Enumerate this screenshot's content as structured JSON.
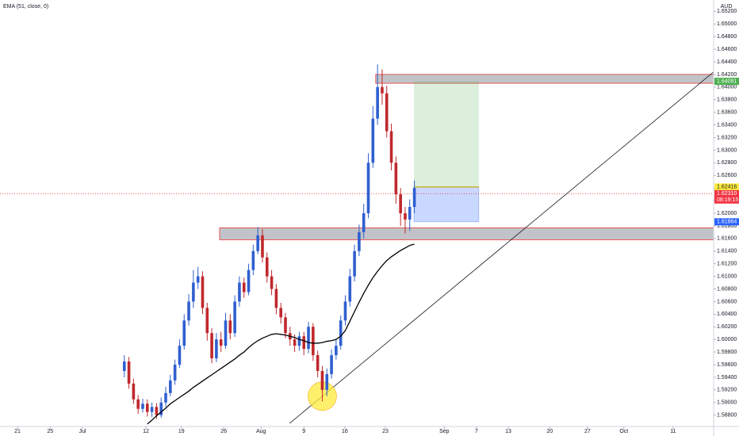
{
  "chart_data": {
    "type": "candlestick",
    "legend": "EMA (51, close, 0)",
    "currency": "AUD",
    "candles": {
      "up_color": "#2f5fd0",
      "down_color": "#c0282d",
      "open": [
        1.595,
        1.5965,
        1.593,
        1.5905,
        1.589,
        1.5898,
        1.5885,
        1.5893,
        1.588,
        1.59,
        1.5915,
        1.5935,
        1.596,
        1.599,
        1.603,
        1.606,
        1.609,
        1.61,
        1.605,
        1.601,
        1.597,
        1.6,
        1.599,
        1.603,
        1.601,
        1.606,
        1.609,
        1.6075,
        1.611,
        1.614,
        1.6165,
        1.613,
        1.61,
        1.608,
        1.605,
        1.6035,
        1.601,
        1.6,
        1.599,
        1.6005,
        1.5985,
        1.602,
        1.5975,
        1.595,
        1.592,
        1.5945,
        1.5975,
        1.599,
        1.603,
        1.606,
        1.61,
        1.614,
        1.617,
        1.62,
        1.628,
        1.635,
        1.64,
        1.639,
        1.633,
        1.628,
        1.623,
        1.62,
        1.619,
        1.621
      ],
      "high": [
        1.5975,
        1.5972,
        1.5938,
        1.5912,
        1.5906,
        1.5905,
        1.59,
        1.5899,
        1.5908,
        1.5925,
        1.5944,
        1.5968,
        1.6,
        1.604,
        1.6072,
        1.611,
        1.6115,
        1.6108,
        1.6058,
        1.6018,
        1.601,
        1.6012,
        1.6042,
        1.604,
        1.607,
        1.61,
        1.6098,
        1.612,
        1.615,
        1.6178,
        1.6175,
        1.6138,
        1.611,
        1.6088,
        1.6058,
        1.6042,
        1.602,
        1.6008,
        1.6012,
        1.6012,
        1.6028,
        1.6026,
        1.5982,
        1.5958,
        1.5954,
        1.5984,
        1.6,
        1.6038,
        1.607,
        1.6112,
        1.615,
        1.6182,
        1.6215,
        1.6295,
        1.637,
        1.6436,
        1.6428,
        1.6402,
        1.6342,
        1.629,
        1.624,
        1.621,
        1.6222,
        1.6252
      ],
      "low": [
        1.594,
        1.5922,
        1.5898,
        1.5882,
        1.5884,
        1.5878,
        1.5877,
        1.5874,
        1.5876,
        1.5893,
        1.591,
        1.5928,
        1.5955,
        1.5984,
        1.6022,
        1.605,
        1.608,
        1.604,
        1.5998,
        1.5962,
        1.5964,
        1.598,
        1.5985,
        1.6,
        1.6004,
        1.6052,
        1.6066,
        1.607,
        1.6102,
        1.6135,
        1.6122,
        1.609,
        1.607,
        1.604,
        1.6025,
        1.6002,
        1.599,
        1.598,
        1.5982,
        1.5975,
        1.5978,
        1.5966,
        1.594,
        1.5902,
        1.591,
        1.5938,
        1.5968,
        1.5984,
        1.6022,
        1.6052,
        1.6092,
        1.6132,
        1.616,
        1.6192,
        1.6272,
        1.634,
        1.6372,
        1.632,
        1.6268,
        1.6215,
        1.618,
        1.6168,
        1.6172,
        1.62
      ],
      "close": [
        1.5965,
        1.593,
        1.5905,
        1.589,
        1.5898,
        1.5885,
        1.5893,
        1.588,
        1.59,
        1.5915,
        1.5935,
        1.596,
        1.599,
        1.603,
        1.606,
        1.609,
        1.61,
        1.605,
        1.601,
        1.597,
        1.6,
        1.599,
        1.603,
        1.601,
        1.606,
        1.609,
        1.6075,
        1.611,
        1.614,
        1.6165,
        1.613,
        1.61,
        1.608,
        1.605,
        1.6035,
        1.601,
        1.6,
        1.599,
        1.6005,
        1.5985,
        1.602,
        1.5975,
        1.595,
        1.592,
        1.5945,
        1.5975,
        1.599,
        1.603,
        1.606,
        1.61,
        1.614,
        1.617,
        1.62,
        1.628,
        1.635,
        1.64,
        1.639,
        1.633,
        1.628,
        1.623,
        1.62,
        1.619,
        1.621,
        1.624
      ]
    },
    "ema": {
      "name": "EMA (51, close, 0)",
      "color": "#000000",
      "values": [
        null,
        null,
        null,
        null,
        null,
        1.5866,
        1.5872,
        1.5879,
        1.5885,
        1.5891,
        1.5898,
        1.5903,
        1.5908,
        1.5913,
        1.5918,
        1.5924,
        1.5929,
        1.5934,
        1.5939,
        1.5944,
        1.5949,
        1.5954,
        1.5959,
        1.5964,
        1.5969,
        1.5975,
        1.598,
        1.5987,
        1.5993,
        1.5998,
        1.6002,
        1.6005,
        1.6008,
        1.6009,
        1.6008,
        1.6007,
        1.6005,
        1.6003,
        1.6,
        1.5998,
        1.5995,
        1.5994,
        1.5994,
        1.5995,
        1.5997,
        1.5998,
        1.6,
        1.6005,
        1.6014,
        1.6029,
        1.6044,
        1.6059,
        1.6073,
        1.6086,
        1.6098,
        1.6108,
        1.6117,
        1.6125,
        1.6131,
        1.6136,
        1.6141,
        1.6145,
        1.6149,
        1.6151
      ]
    },
    "xlim": [
      -27,
      128
    ],
    "xticks": [
      {
        "value": -23.2,
        "label": "21"
      },
      {
        "value": -16.1,
        "label": "25"
      },
      {
        "value": -9.1,
        "label": "Jul"
      },
      {
        "value": 4.7,
        "label": "12"
      },
      {
        "value": 12.4,
        "label": "19"
      },
      {
        "value": 21.6,
        "label": "26"
      },
      {
        "value": 29.7,
        "label": "Aug"
      },
      {
        "value": 39.0,
        "label": "9"
      },
      {
        "value": 47.9,
        "label": "16"
      },
      {
        "value": 56.7,
        "label": "23"
      },
      {
        "value": 69.5,
        "label": "Sep"
      },
      {
        "value": 76.5,
        "label": "7"
      },
      {
        "value": 83.4,
        "label": "13"
      },
      {
        "value": 92.4,
        "label": "20"
      },
      {
        "value": 100.6,
        "label": "27"
      },
      {
        "value": 108.5,
        "label": "Oct"
      },
      {
        "value": 119.2,
        "label": "11"
      }
    ],
    "ylim": [
      1.5862,
      1.6538
    ],
    "yticks": [
      {
        "value": 1.588,
        "label": "1.58800"
      },
      {
        "value": 1.59,
        "label": "1.59000"
      },
      {
        "value": 1.592,
        "label": "1.59200"
      },
      {
        "value": 1.594,
        "label": "1.59400"
      },
      {
        "value": 1.596,
        "label": "1.59600"
      },
      {
        "value": 1.598,
        "label": "1.59800"
      },
      {
        "value": 1.6,
        "label": "1.60000"
      },
      {
        "value": 1.602,
        "label": "1.60200"
      },
      {
        "value": 1.604,
        "label": "1.60400"
      },
      {
        "value": 1.606,
        "label": "1.60600"
      },
      {
        "value": 1.608,
        "label": "1.60800"
      },
      {
        "value": 1.61,
        "label": "1.61000"
      },
      {
        "value": 1.612,
        "label": "1.61200"
      },
      {
        "value": 1.614,
        "label": "1.61400"
      },
      {
        "value": 1.616,
        "label": "1.61600"
      },
      {
        "value": 1.618,
        "label": "1.61800"
      },
      {
        "value": 1.62,
        "label": "1.62000"
      },
      {
        "value": 1.622,
        "label": "1.62200"
      },
      {
        "value": 1.624,
        "label": "1.62400"
      },
      {
        "value": 1.626,
        "label": "1.62600"
      },
      {
        "value": 1.628,
        "label": "1.62800"
      },
      {
        "value": 1.63,
        "label": "1.63000"
      },
      {
        "value": 1.632,
        "label": "1.63200"
      },
      {
        "value": 1.634,
        "label": "1.63400"
      },
      {
        "value": 1.636,
        "label": "1.63600"
      },
      {
        "value": 1.638,
        "label": "1.63800"
      },
      {
        "value": 1.64,
        "label": "1.64000"
      },
      {
        "value": 1.642,
        "label": "1.64200"
      },
      {
        "value": 1.644,
        "label": "1.64400"
      },
      {
        "value": 1.646,
        "label": "1.64600"
      },
      {
        "value": 1.648,
        "label": "1.64800"
      },
      {
        "value": 1.65,
        "label": "1.65000"
      },
      {
        "value": 1.652,
        "label": "1.65200"
      }
    ],
    "zones": [
      {
        "x0": 54.6,
        "x1": 128,
        "top": 1.642,
        "bottom": 1.6406
      },
      {
        "x0": 20.7,
        "x1": 128,
        "top": 1.6177,
        "bottom": 1.6158
      }
    ],
    "position": {
      "x0": 62.9,
      "x1": 77.0,
      "target": 1.64091,
      "entry": 1.62416,
      "stop": 1.61864
    },
    "trendline": {
      "x": [
        35.9,
        128
      ],
      "y": [
        1.5867,
        1.6424
      ]
    },
    "highlight": {
      "x": 43,
      "y": 1.591
    },
    "price_labels": [
      {
        "value": 1.64091,
        "color": "#4caf50"
      },
      {
        "value": 1.62416,
        "color": "#ffeb3b"
      },
      {
        "value": 1.6231,
        "label": "1.62310",
        "countdown": "08:19:15",
        "color": "#f23645",
        "dotted": true
      },
      {
        "value": 1.61864,
        "color": "#2962ff"
      }
    ]
  }
}
